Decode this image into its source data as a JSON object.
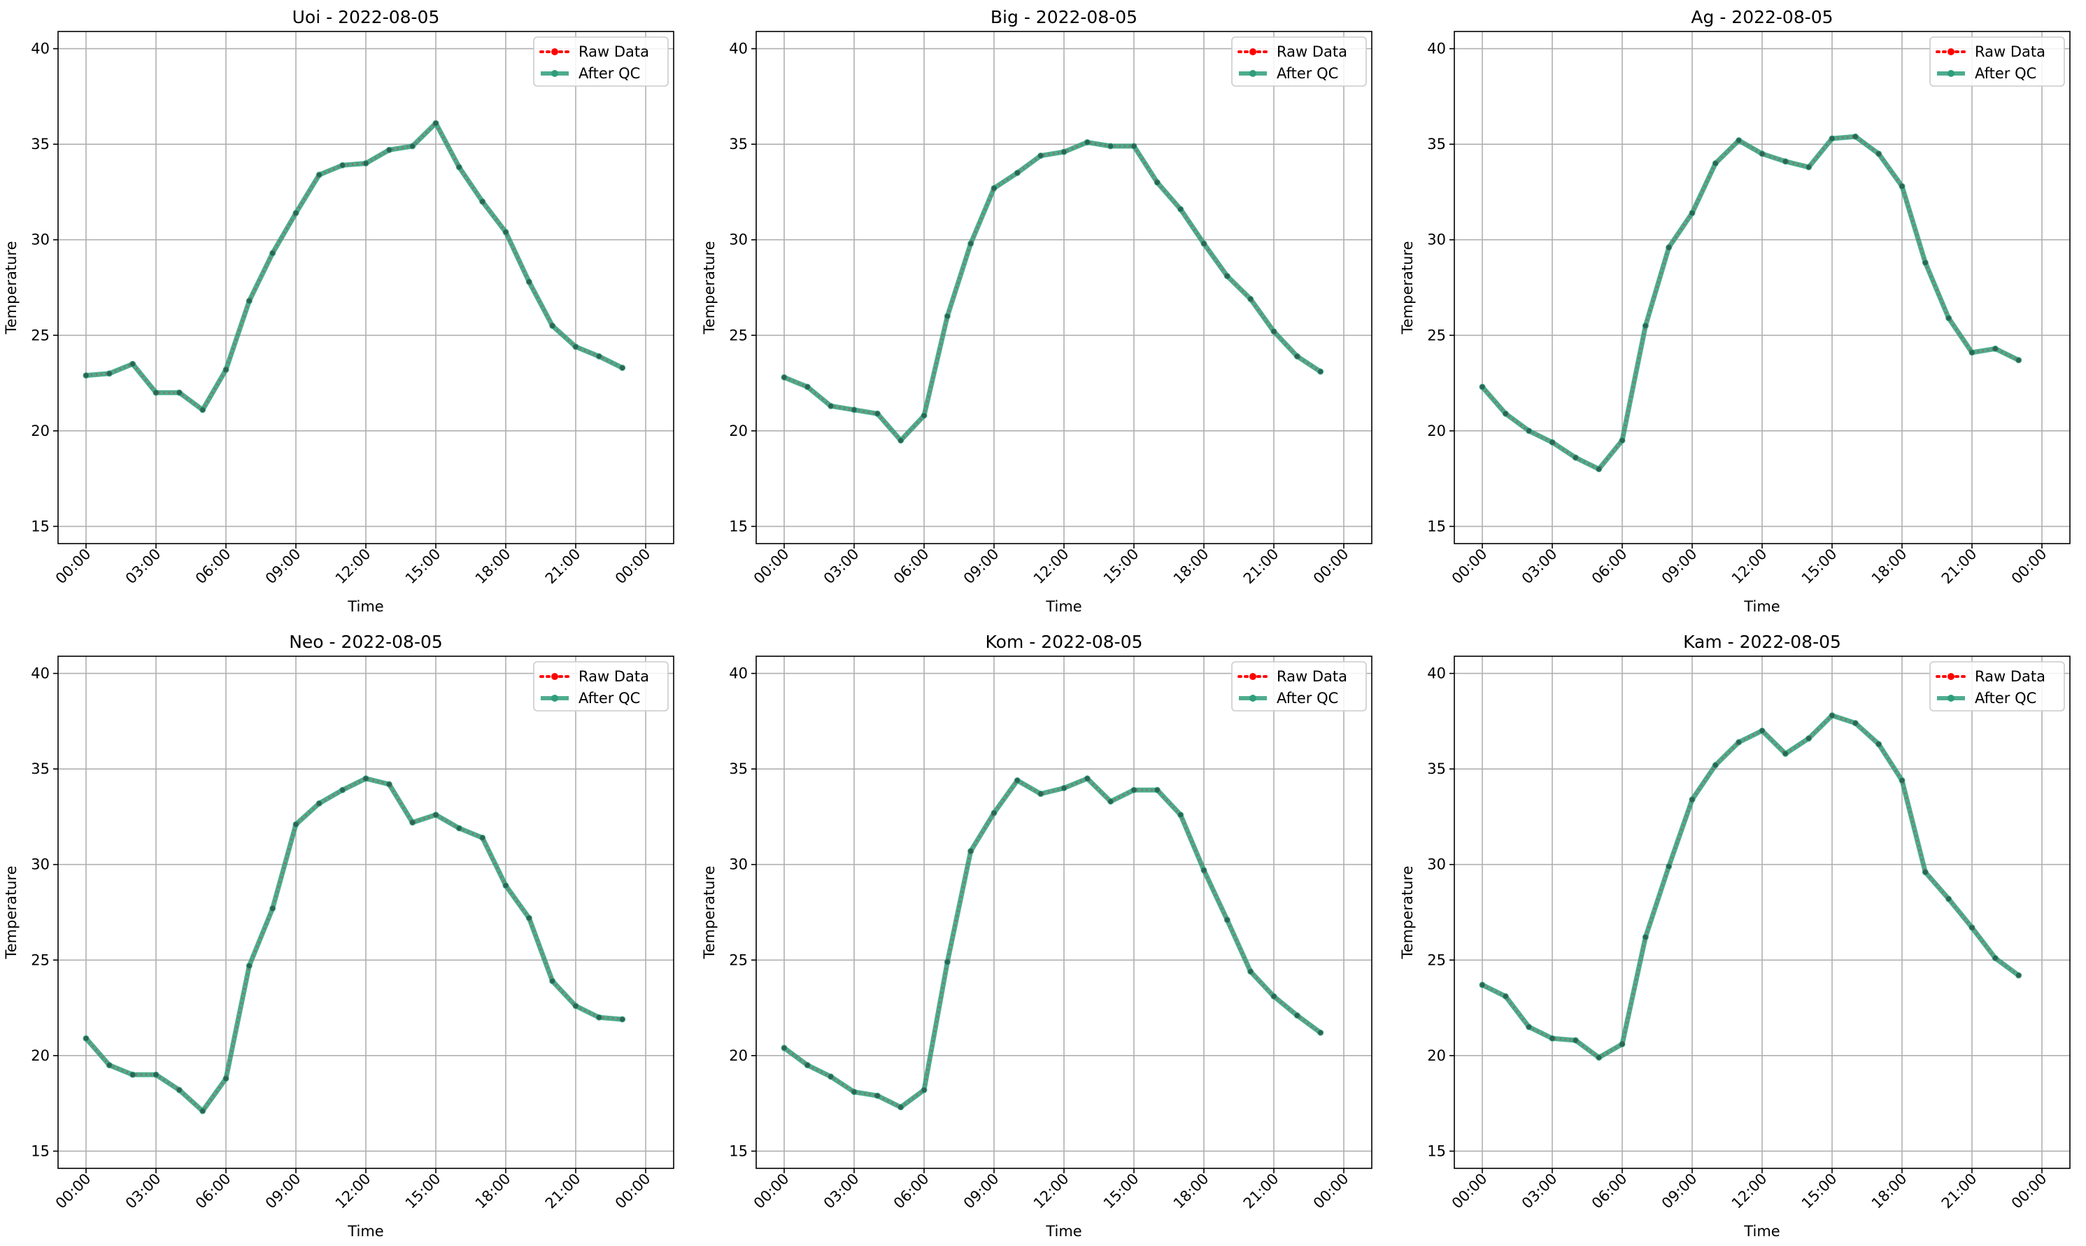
{
  "chart_data": [
    {
      "type": "line",
      "title": "Uoi - 2022-08-05",
      "xlabel": "Time",
      "ylabel": "Temperature",
      "ylim": [
        14.1,
        40.9
      ],
      "yticks": [
        "15",
        "20",
        "25",
        "30",
        "35",
        "40"
      ],
      "xticks": [
        "00:00",
        "03:00",
        "06:00",
        "09:00",
        "12:00",
        "15:00",
        "18:00",
        "21:00",
        "00:00"
      ],
      "x": [
        "00:00",
        "01:00",
        "02:00",
        "03:00",
        "04:00",
        "05:00",
        "06:00",
        "07:00",
        "08:00",
        "09:00",
        "10:00",
        "11:00",
        "12:00",
        "13:00",
        "14:00",
        "15:00",
        "16:00",
        "17:00",
        "18:00",
        "19:00",
        "20:00",
        "21:00",
        "22:00",
        "23:00"
      ],
      "grid": true,
      "legend_position": "top-right",
      "series": [
        {
          "name": "Raw Data",
          "color": "#ff0000",
          "values": [
            22.9,
            23.0,
            23.5,
            22.0,
            22.0,
            21.1,
            23.2,
            26.8,
            29.3,
            31.4,
            33.4,
            33.9,
            34.0,
            34.7,
            34.9,
            36.1,
            33.8,
            32.0,
            30.4,
            27.8,
            25.5,
            24.4,
            23.9,
            23.3
          ]
        },
        {
          "name": "After QC",
          "color": "#2e9e7a",
          "values": [
            22.9,
            23.0,
            23.5,
            22.0,
            22.0,
            21.1,
            23.2,
            26.8,
            29.3,
            31.4,
            33.4,
            33.9,
            34.0,
            34.7,
            34.9,
            36.1,
            33.8,
            32.0,
            30.4,
            27.8,
            25.5,
            24.4,
            23.9,
            23.3
          ]
        }
      ]
    },
    {
      "type": "line",
      "title": "Big - 2022-08-05",
      "xlabel": "Time",
      "ylabel": "Temperature",
      "ylim": [
        14.1,
        40.9
      ],
      "yticks": [
        "15",
        "20",
        "25",
        "30",
        "35",
        "40"
      ],
      "xticks": [
        "00:00",
        "03:00",
        "06:00",
        "09:00",
        "12:00",
        "15:00",
        "18:00",
        "21:00",
        "00:00"
      ],
      "x": [
        "00:00",
        "01:00",
        "02:00",
        "03:00",
        "04:00",
        "05:00",
        "06:00",
        "07:00",
        "08:00",
        "09:00",
        "10:00",
        "11:00",
        "12:00",
        "13:00",
        "14:00",
        "15:00",
        "16:00",
        "17:00",
        "18:00",
        "19:00",
        "20:00",
        "21:00",
        "22:00",
        "23:00"
      ],
      "grid": true,
      "legend_position": "top-right",
      "series": [
        {
          "name": "Raw Data",
          "color": "#ff0000",
          "values": [
            22.8,
            22.3,
            21.3,
            21.1,
            20.9,
            19.5,
            20.8,
            26.0,
            29.8,
            32.7,
            33.5,
            34.4,
            34.6,
            35.1,
            34.9,
            34.9,
            33.0,
            31.6,
            29.8,
            28.1,
            26.9,
            25.2,
            23.9,
            23.1
          ]
        },
        {
          "name": "After QC",
          "color": "#2e9e7a",
          "values": [
            22.8,
            22.3,
            21.3,
            21.1,
            20.9,
            19.5,
            20.8,
            26.0,
            29.8,
            32.7,
            33.5,
            34.4,
            34.6,
            35.1,
            34.9,
            34.9,
            33.0,
            31.6,
            29.8,
            28.1,
            26.9,
            25.2,
            23.9,
            23.1
          ]
        }
      ]
    },
    {
      "type": "line",
      "title": "Ag - 2022-08-05",
      "xlabel": "Time",
      "ylabel": "Temperature",
      "ylim": [
        14.1,
        40.9
      ],
      "yticks": [
        "15",
        "20",
        "25",
        "30",
        "35",
        "40"
      ],
      "xticks": [
        "00:00",
        "03:00",
        "06:00",
        "09:00",
        "12:00",
        "15:00",
        "18:00",
        "21:00",
        "00:00"
      ],
      "x": [
        "00:00",
        "01:00",
        "02:00",
        "03:00",
        "04:00",
        "05:00",
        "06:00",
        "07:00",
        "08:00",
        "09:00",
        "10:00",
        "11:00",
        "12:00",
        "13:00",
        "14:00",
        "15:00",
        "16:00",
        "17:00",
        "18:00",
        "19:00",
        "20:00",
        "21:00",
        "22:00",
        "23:00"
      ],
      "grid": true,
      "legend_position": "top-right",
      "series": [
        {
          "name": "Raw Data",
          "color": "#ff0000",
          "values": [
            22.3,
            20.9,
            20.0,
            19.4,
            18.6,
            18.0,
            19.5,
            25.5,
            29.6,
            31.4,
            34.0,
            35.2,
            34.5,
            34.1,
            33.8,
            35.3,
            35.4,
            34.5,
            32.8,
            28.8,
            25.9,
            24.1,
            24.3,
            23.7
          ]
        },
        {
          "name": "After QC",
          "color": "#2e9e7a",
          "values": [
            22.3,
            20.9,
            20.0,
            19.4,
            18.6,
            18.0,
            19.5,
            25.5,
            29.6,
            31.4,
            34.0,
            35.2,
            34.5,
            34.1,
            33.8,
            35.3,
            35.4,
            34.5,
            32.8,
            28.8,
            25.9,
            24.1,
            24.3,
            23.7
          ]
        }
      ]
    },
    {
      "type": "line",
      "title": "Neo - 2022-08-05",
      "xlabel": "Time",
      "ylabel": "Temperature",
      "ylim": [
        14.1,
        40.9
      ],
      "yticks": [
        "15",
        "20",
        "25",
        "30",
        "35",
        "40"
      ],
      "xticks": [
        "00:00",
        "03:00",
        "06:00",
        "09:00",
        "12:00",
        "15:00",
        "18:00",
        "21:00",
        "00:00"
      ],
      "x": [
        "00:00",
        "01:00",
        "02:00",
        "03:00",
        "04:00",
        "05:00",
        "06:00",
        "07:00",
        "08:00",
        "09:00",
        "10:00",
        "11:00",
        "12:00",
        "13:00",
        "14:00",
        "15:00",
        "16:00",
        "17:00",
        "18:00",
        "19:00",
        "20:00",
        "21:00",
        "22:00",
        "23:00"
      ],
      "grid": true,
      "legend_position": "top-right",
      "series": [
        {
          "name": "Raw Data",
          "color": "#ff0000",
          "values": [
            20.9,
            19.5,
            19.0,
            19.0,
            18.2,
            17.1,
            18.8,
            24.7,
            27.7,
            32.1,
            33.2,
            33.9,
            34.5,
            34.2,
            32.2,
            32.6,
            31.9,
            31.4,
            28.9,
            27.2,
            23.9,
            22.6,
            22.0,
            21.9
          ]
        },
        {
          "name": "After QC",
          "color": "#2e9e7a",
          "values": [
            20.9,
            19.5,
            19.0,
            19.0,
            18.2,
            17.1,
            18.8,
            24.7,
            27.7,
            32.1,
            33.2,
            33.9,
            34.5,
            34.2,
            32.2,
            32.6,
            31.9,
            31.4,
            28.9,
            27.2,
            23.9,
            22.6,
            22.0,
            21.9
          ]
        }
      ]
    },
    {
      "type": "line",
      "title": "Kom - 2022-08-05",
      "xlabel": "Time",
      "ylabel": "Temperature",
      "ylim": [
        14.1,
        40.9
      ],
      "yticks": [
        "15",
        "20",
        "25",
        "30",
        "35",
        "40"
      ],
      "xticks": [
        "00:00",
        "03:00",
        "06:00",
        "09:00",
        "12:00",
        "15:00",
        "18:00",
        "21:00",
        "00:00"
      ],
      "x": [
        "00:00",
        "01:00",
        "02:00",
        "03:00",
        "04:00",
        "05:00",
        "06:00",
        "07:00",
        "08:00",
        "09:00",
        "10:00",
        "11:00",
        "12:00",
        "13:00",
        "14:00",
        "15:00",
        "16:00",
        "17:00",
        "18:00",
        "19:00",
        "20:00",
        "21:00",
        "22:00",
        "23:00"
      ],
      "grid": true,
      "legend_position": "top-right",
      "series": [
        {
          "name": "Raw Data",
          "color": "#ff0000",
          "values": [
            20.4,
            19.5,
            18.9,
            18.1,
            17.9,
            17.3,
            18.2,
            24.9,
            30.7,
            32.7,
            34.4,
            33.7,
            34.0,
            34.5,
            33.3,
            33.9,
            33.9,
            32.6,
            29.7,
            27.1,
            24.4,
            23.1,
            22.1,
            21.2
          ]
        },
        {
          "name": "After QC",
          "color": "#2e9e7a",
          "values": [
            20.4,
            19.5,
            18.9,
            18.1,
            17.9,
            17.3,
            18.2,
            24.9,
            30.7,
            32.7,
            34.4,
            33.7,
            34.0,
            34.5,
            33.3,
            33.9,
            33.9,
            32.6,
            29.7,
            27.1,
            24.4,
            23.1,
            22.1,
            21.2
          ]
        }
      ]
    },
    {
      "type": "line",
      "title": "Kam - 2022-08-05",
      "xlabel": "Time",
      "ylabel": "Temperature",
      "ylim": [
        14.1,
        40.9
      ],
      "yticks": [
        "15",
        "20",
        "25",
        "30",
        "35",
        "40"
      ],
      "xticks": [
        "00:00",
        "03:00",
        "06:00",
        "09:00",
        "12:00",
        "15:00",
        "18:00",
        "21:00",
        "00:00"
      ],
      "x": [
        "00:00",
        "01:00",
        "02:00",
        "03:00",
        "04:00",
        "05:00",
        "06:00",
        "07:00",
        "08:00",
        "09:00",
        "10:00",
        "11:00",
        "12:00",
        "13:00",
        "14:00",
        "15:00",
        "16:00",
        "17:00",
        "18:00",
        "19:00",
        "20:00",
        "21:00",
        "22:00",
        "23:00"
      ],
      "grid": true,
      "legend_position": "top-right",
      "series": [
        {
          "name": "Raw Data",
          "color": "#ff0000",
          "values": [
            23.7,
            23.1,
            21.5,
            20.9,
            20.8,
            19.9,
            20.6,
            26.2,
            29.9,
            33.4,
            35.2,
            36.4,
            37.0,
            35.8,
            36.6,
            37.8,
            37.4,
            36.3,
            34.4,
            29.6,
            28.2,
            26.7,
            25.1,
            24.2
          ]
        },
        {
          "name": "After QC",
          "color": "#2e9e7a",
          "values": [
            23.7,
            23.1,
            21.5,
            20.9,
            20.8,
            19.9,
            20.6,
            26.2,
            29.9,
            33.4,
            35.2,
            36.4,
            37.0,
            35.8,
            36.6,
            37.8,
            37.4,
            36.3,
            34.4,
            29.6,
            28.2,
            26.7,
            25.1,
            24.2
          ]
        }
      ]
    }
  ]
}
